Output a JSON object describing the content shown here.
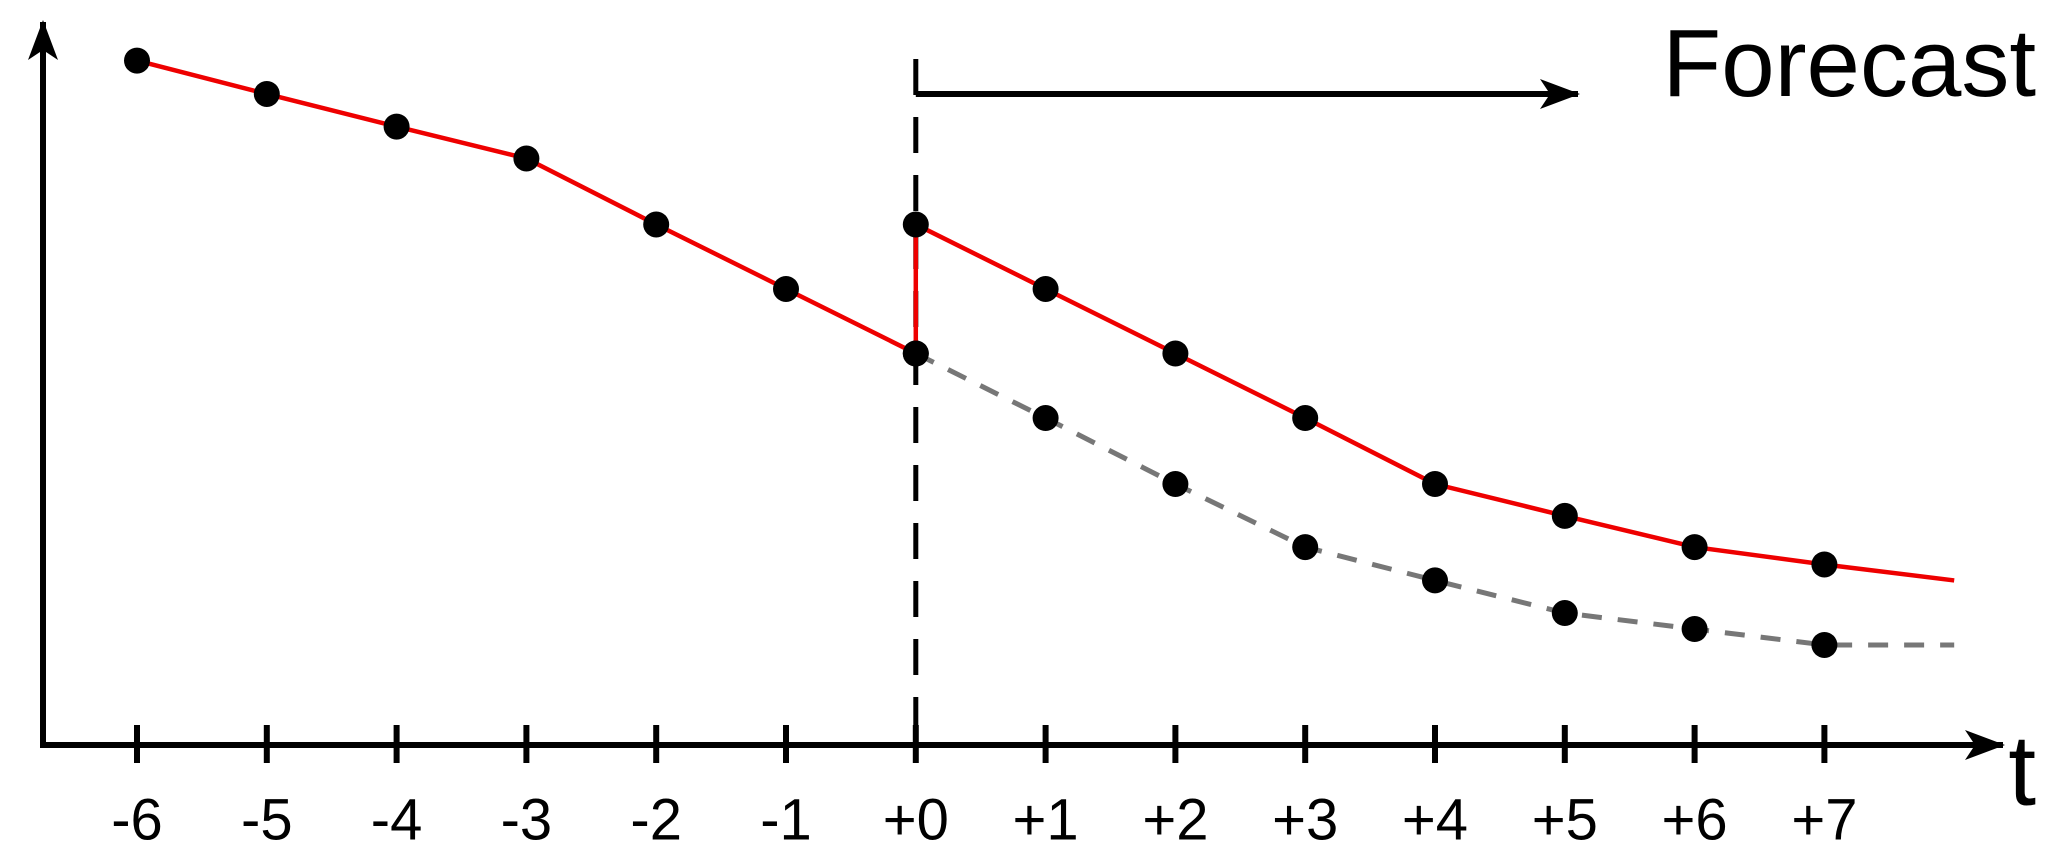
{
  "chart_data": {
    "type": "line",
    "categories": [
      "-6",
      "-5",
      "-4",
      "-3",
      "-2",
      "-1",
      "+0",
      "+1",
      "+2",
      "+3",
      "+4",
      "+5",
      "+6",
      "+7",
      null
    ],
    "x_label": "t",
    "annotation": "Forecast",
    "ylim": [
      0,
      100
    ],
    "series": [
      {
        "color": "#ee0000",
        "values": [
          94.4,
          89.8,
          85.3,
          80.9,
          71.8,
          62.9,
          54.0,
          null,
          null,
          null,
          null,
          null,
          null,
          null,
          null
        ]
      },
      {
        "color": "#ee0000",
        "values": [
          null,
          null,
          null,
          null,
          null,
          null,
          71.8,
          62.9,
          54.0,
          45.1,
          36.0,
          31.6,
          27.3,
          24.9,
          22.7
        ]
      },
      {
        "color": "#777777",
        "dashed": true,
        "values": [
          null,
          null,
          null,
          null,
          null,
          null,
          54.0,
          45.1,
          36.0,
          27.3,
          22.7,
          18.2,
          16.0,
          13.8,
          13.8
        ]
      }
    ]
  }
}
